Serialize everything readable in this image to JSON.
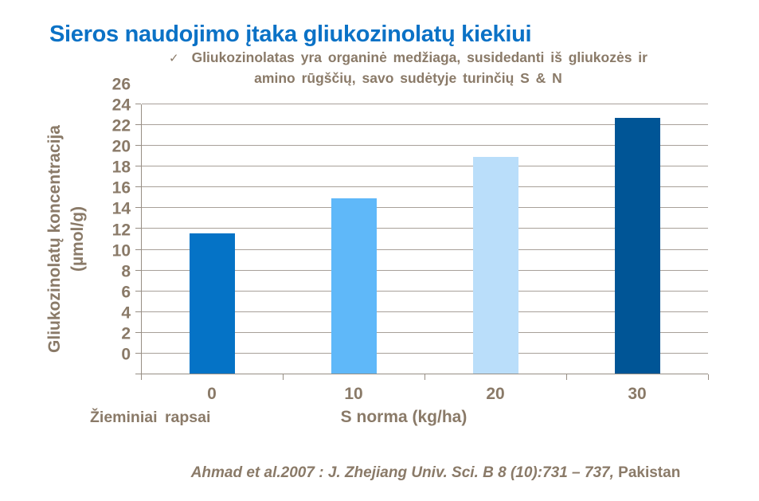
{
  "slide": {
    "title": "Sieros naudojimo įtaka gliukozinolatų kiekiui",
    "bullet": {
      "check_glyph": "✓",
      "line1": "Gliukozinolatas yra organinė medžiaga, susidedanti iš gliukozės ir",
      "line2": "amino rūgščių, savo sudėtyje turinčių S & N"
    },
    "citation": {
      "italic_part": "Ahmad et al.2007 : J. Zhejiang Univ. Sci. B 8 (10):731 – 737,",
      "plain_part": " Pakistan"
    }
  },
  "colors": {
    "title_blue": "#0B72C6",
    "text_brown": "#8A7A68",
    "gridline": "#A8A099",
    "axis": "#978E84",
    "background": "#FFFFFF"
  },
  "chart_data": {
    "type": "bar",
    "categories": [
      "0",
      "10",
      "20",
      "30"
    ],
    "values": [
      13.5,
      16.9,
      20.9,
      24.6
    ],
    "bar_colors": [
      "#0573C6",
      "#5FB8F9",
      "#BADEFA",
      "#005596"
    ],
    "title": "",
    "xlabel": "S norma (kg/ha)",
    "x_caption_left": "Žieminiai rapsai",
    "ylabel": "Gliukozinolatų koncentracija (µmol/g)",
    "ylabel_line1": "Gliukozinolatų koncentracija",
    "ylabel_line2": "(µmol/g)",
    "ylim": [
      0,
      26
    ],
    "ytick_step": 2,
    "grid": true,
    "legend": "none"
  }
}
